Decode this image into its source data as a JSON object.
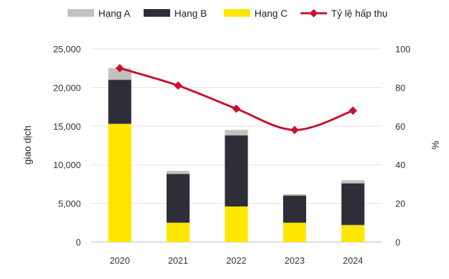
{
  "chart_data": {
    "type": "bar",
    "stacked": true,
    "categories": [
      "2020",
      "2021",
      "2022",
      "2023",
      "2024"
    ],
    "series": [
      {
        "name": "Hạng C",
        "color": "#FFE600",
        "values": [
          15300,
          2500,
          4600,
          2500,
          2200
        ]
      },
      {
        "name": "Hạng B",
        "color": "#2E2E38",
        "values": [
          5700,
          6300,
          9200,
          3500,
          5400
        ]
      },
      {
        "name": "Hạng A",
        "color": "#C4C0BE",
        "values": [
          1500,
          400,
          700,
          200,
          400
        ]
      }
    ],
    "legend_order": [
      "Hạng A",
      "Hạng B",
      "Hạng C",
      "Tỷ lệ hấp thụ"
    ],
    "line_series": {
      "name": "Tỷ lệ hấp thụ",
      "color": "#C8102E",
      "axis": "right",
      "values": [
        90,
        81,
        69,
        58,
        68
      ]
    },
    "ylabel": "giao dịch",
    "y2label": "%",
    "ylim": [
      0,
      25000
    ],
    "yticks": [
      "0",
      "5,000",
      "10,000",
      "15,000",
      "20,000",
      "25,000"
    ],
    "ytick_values": [
      0,
      5000,
      10000,
      15000,
      20000,
      25000
    ],
    "y2lim": [
      0,
      100
    ],
    "y2ticks": [
      "0",
      "20",
      "40",
      "60",
      "80",
      "100"
    ],
    "y2tick_values": [
      0,
      20,
      40,
      60,
      80,
      100
    ],
    "grid": "horizontal",
    "legend_position": "top"
  }
}
